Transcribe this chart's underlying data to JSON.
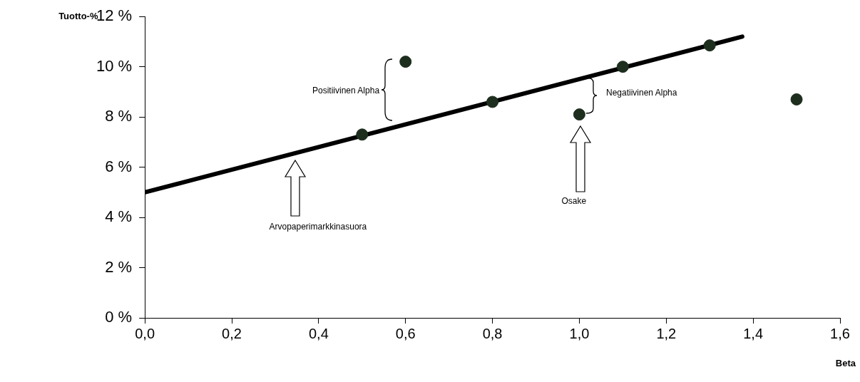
{
  "chart_data": {
    "type": "scatter",
    "xlabel": "Beta",
    "ylabel": "Tuotto-%",
    "series": [
      {
        "type": "line",
        "color": "#000000",
        "x": [
          0,
          1.375
        ],
        "values": [
          5.0,
          11.2
        ],
        "marker": "none",
        "line_style": "solid"
      },
      {
        "type": "scatter",
        "color": "#1e2e1e",
        "x": [
          0.5,
          0.6,
          0.8,
          1.0,
          1.1,
          1.3,
          1.5
        ],
        "values": [
          7.3,
          10.2,
          8.6,
          8.1,
          10.0,
          10.85,
          8.7
        ],
        "marker": "circle"
      }
    ],
    "xlim": [
      0,
      1.6
    ],
    "xticks": [
      {
        "value": 0,
        "label": "0,0"
      },
      {
        "value": 0.2,
        "label": "0,2"
      },
      {
        "value": 0.4,
        "label": "0,4"
      },
      {
        "value": 0.6,
        "label": "0,6"
      },
      {
        "value": 0.8,
        "label": "0,8"
      },
      {
        "value": 1.0,
        "label": "1,0"
      },
      {
        "value": 1.2,
        "label": "1,2"
      },
      {
        "value": 1.4,
        "label": "1,4"
      },
      {
        "value": 1.6,
        "label": "1,6"
      }
    ],
    "ylim": [
      0,
      12
    ],
    "yticks": [
      {
        "value": 0,
        "label": "0 %"
      },
      {
        "value": 2,
        "label": "2 %"
      },
      {
        "value": 4,
        "label": "4 %"
      },
      {
        "value": 6,
        "label": "6 %"
      },
      {
        "value": 8,
        "label": "8 %"
      },
      {
        "value": 10,
        "label": "10 %"
      },
      {
        "value": 12,
        "label": "12 %"
      }
    ],
    "grid": false,
    "legend": false,
    "annotations": [
      "Positiivinen Alpha",
      "Negatiivinen Alpha",
      "Osake",
      "Arvopaperimarkkinasuora"
    ]
  }
}
